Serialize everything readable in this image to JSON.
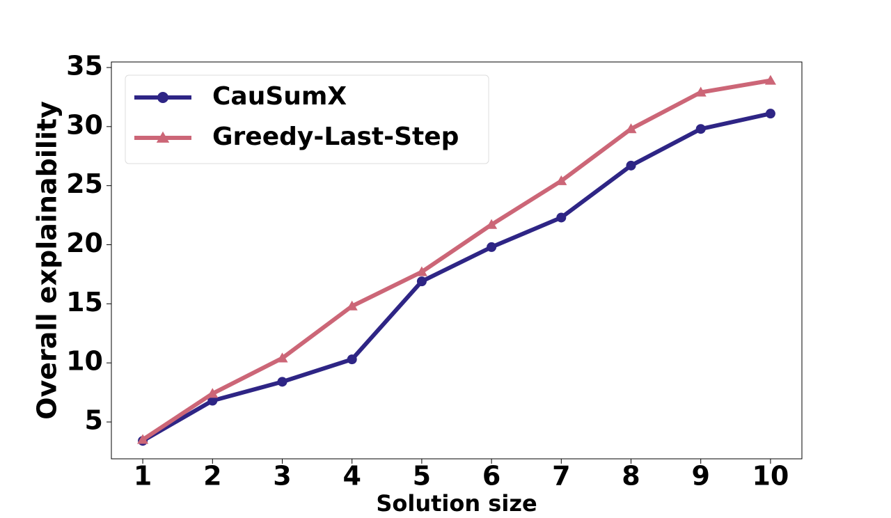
{
  "chart_data": {
    "type": "line",
    "xlabel": "Solution size",
    "ylabel": "Overall explainability",
    "x": [
      1,
      2,
      3,
      4,
      5,
      6,
      7,
      8,
      9,
      10
    ],
    "series": [
      {
        "name": "CauSumX",
        "color": "#2e2585",
        "marker": "circle",
        "values": [
          3.4,
          6.8,
          8.4,
          10.3,
          16.9,
          19.8,
          22.3,
          26.7,
          29.8,
          31.1
        ]
      },
      {
        "name": "Greedy-Last-Step",
        "color": "#cc6677",
        "marker": "triangle",
        "values": [
          3.5,
          7.4,
          10.4,
          14.8,
          17.7,
          21.7,
          25.4,
          29.8,
          32.9,
          33.9
        ]
      }
    ],
    "xlim": [
      0.55,
      10.45
    ],
    "ylim": [
      1.88,
      35.47
    ],
    "xticks": [
      1,
      2,
      3,
      4,
      5,
      6,
      7,
      8,
      9,
      10
    ],
    "yticks": [
      5,
      10,
      15,
      20,
      25,
      30,
      35
    ],
    "grid": false,
    "legend": "upper left"
  }
}
